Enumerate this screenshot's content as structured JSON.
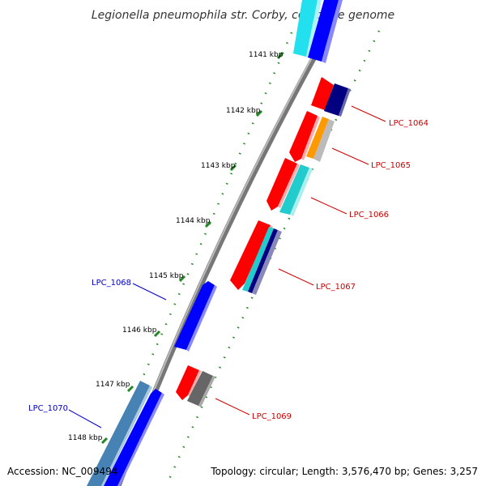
{
  "title": "Legionella pneumophila str. Corby, complete genome",
  "accession": "Accession: NC_009494",
  "topology": "Topology: circular; Length: 3,576,470 bp; Genes: 3,257",
  "ticks": [
    "1141 kbp",
    "1142 kbp",
    "1143 kbp",
    "1144 kbp",
    "1145 kbp",
    "1146 kbp",
    "1147 kbp",
    "1148 kbp"
  ],
  "genes": [
    {
      "label": "LPC_1064",
      "strand": "forward"
    },
    {
      "label": "LPC_1065",
      "strand": "forward"
    },
    {
      "label": "LPC_1066",
      "strand": "forward"
    },
    {
      "label": "LPC_1067",
      "strand": "forward"
    },
    {
      "label": "LPC_1068",
      "strand": "reverse"
    },
    {
      "label": "LPC_1069",
      "strand": "forward"
    },
    {
      "label": "LPC_1070",
      "strand": "reverse"
    }
  ],
  "colors": {
    "forward_label": "#cc0000",
    "reverse_label": "#0000cc",
    "tick": "#228822",
    "cds_red": "#ff0000",
    "cds_blue": "#0000ff",
    "cyan": "#22cccc",
    "navy": "#000080",
    "orange": "#ff9900",
    "gray": "#888888",
    "steel": "#4682b4"
  }
}
